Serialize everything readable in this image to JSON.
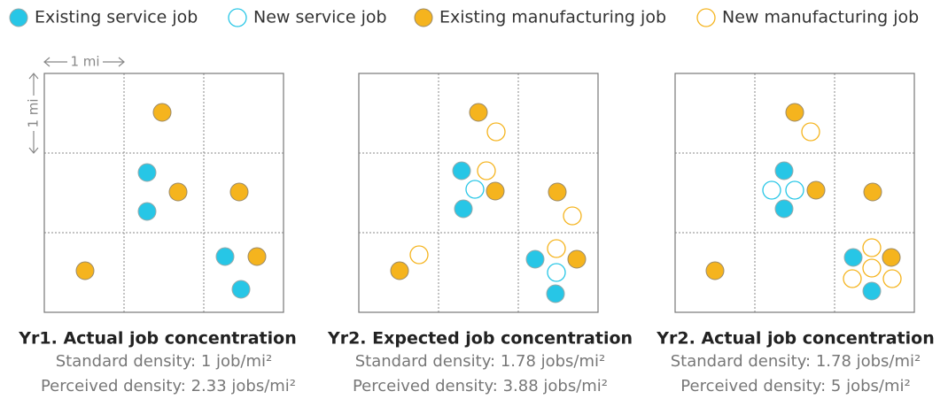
{
  "legend": [
    "Existing service job",
    "New service job",
    "Existing manufacturing job",
    "New manufacturing job"
  ],
  "scale": {
    "horizontal": "1 mi",
    "vertical": "1 mi"
  },
  "panels": [
    {
      "title": "Yr1. Actual job concentration",
      "standard": "Standard density: 1 job/mi²",
      "perceived": "Perceived density: 2.33 jobs/mi²"
    },
    {
      "title": "Yr2. Expected job concentration",
      "standard": "Standard density: 1.78 jobs/mi²",
      "perceived": "Perceived density: 3.88 jobs/mi²"
    },
    {
      "title": "Yr2. Actual job concentration",
      "standard": "Standard density: 1.78 jobs/mi²",
      "perceived": "Perceived density: 5 jobs/mi²"
    }
  ]
}
